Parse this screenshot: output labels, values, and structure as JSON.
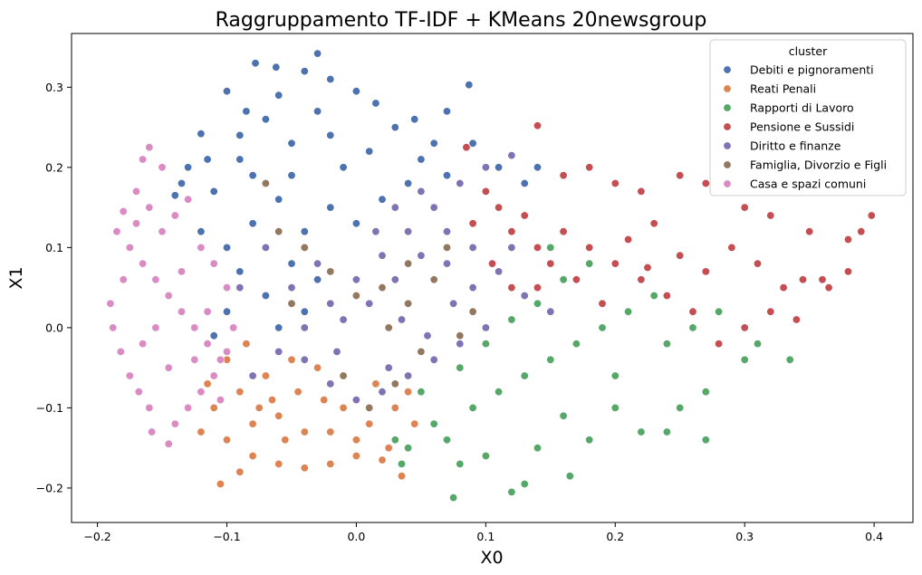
{
  "chart_data": {
    "type": "scatter",
    "title": "Raggruppamento TF-IDF + KMeans 20newsgroup",
    "xlabel": "X0",
    "ylabel": "X1",
    "xlim": [
      -0.22,
      0.43
    ],
    "ylim": [
      -0.243,
      0.367
    ],
    "x_ticks": [
      -0.2,
      -0.1,
      0.0,
      0.1,
      0.2,
      0.3,
      0.4
    ],
    "x_tick_labels": [
      "−0.2",
      "−0.1",
      "0.0",
      "0.1",
      "0.2",
      "0.3",
      "0.4"
    ],
    "y_ticks": [
      -0.2,
      -0.1,
      0.0,
      0.1,
      0.2,
      0.3
    ],
    "y_tick_labels": [
      "−0.2",
      "−0.1",
      "0.0",
      "0.1",
      "0.2",
      "0.3"
    ],
    "grid": false,
    "legend": {
      "title": "cluster",
      "placement": "upper-right"
    },
    "series": [
      {
        "name": "Debiti e pignoramenti",
        "color": "#4c72b0",
        "points": [
          [
            -0.078,
            0.33
          ],
          [
            -0.062,
            0.325
          ],
          [
            -0.04,
            0.32
          ],
          [
            -0.02,
            0.31
          ],
          [
            -0.03,
            0.342
          ],
          [
            0.0,
            0.295
          ],
          [
            0.07,
            0.27
          ],
          [
            0.087,
            0.303
          ],
          [
            -0.1,
            0.295
          ],
          [
            -0.12,
            0.242
          ],
          [
            -0.13,
            0.2
          ],
          [
            -0.14,
            0.165
          ],
          [
            -0.11,
            0.17
          ],
          [
            -0.09,
            0.24
          ],
          [
            -0.07,
            0.26
          ],
          [
            -0.05,
            0.23
          ],
          [
            -0.03,
            0.27
          ],
          [
            -0.01,
            0.2
          ],
          [
            0.01,
            0.22
          ],
          [
            0.03,
            0.25
          ],
          [
            0.05,
            0.21
          ],
          [
            0.07,
            0.19
          ],
          [
            0.09,
            0.23
          ],
          [
            0.11,
            0.2
          ],
          [
            0.13,
            0.18
          ],
          [
            0.14,
            0.2
          ],
          [
            -0.1,
            0.1
          ],
          [
            -0.08,
            0.13
          ],
          [
            -0.06,
            0.16
          ],
          [
            -0.04,
            0.12
          ],
          [
            -0.02,
            0.15
          ],
          [
            0.0,
            0.13
          ],
          [
            0.02,
            0.16
          ],
          [
            -0.12,
            0.12
          ],
          [
            -0.09,
            0.07
          ],
          [
            -0.07,
            0.04
          ],
          [
            -0.05,
            0.08
          ],
          [
            -0.03,
            0.06
          ],
          [
            -0.1,
            0.02
          ],
          [
            -0.06,
            0.0
          ],
          [
            -0.04,
            0.02
          ],
          [
            -0.11,
            -0.01
          ],
          [
            -0.08,
            0.19
          ],
          [
            -0.05,
            0.19
          ],
          [
            -0.02,
            0.24
          ],
          [
            0.04,
            0.18
          ],
          [
            0.06,
            0.23
          ],
          [
            -0.09,
            0.21
          ],
          [
            -0.115,
            0.21
          ],
          [
            -0.135,
            0.18
          ],
          [
            0.015,
            0.28
          ],
          [
            0.045,
            0.26
          ],
          [
            -0.06,
            0.29
          ],
          [
            -0.085,
            0.27
          ]
        ]
      },
      {
        "name": "Reati Penali",
        "color": "#dd8452",
        "points": [
          [
            -0.105,
            -0.195
          ],
          [
            -0.09,
            -0.18
          ],
          [
            -0.08,
            -0.16
          ],
          [
            -0.06,
            -0.17
          ],
          [
            -0.04,
            -0.175
          ],
          [
            -0.02,
            -0.17
          ],
          [
            0.0,
            -0.16
          ],
          [
            0.02,
            -0.165
          ],
          [
            0.035,
            -0.185
          ],
          [
            -0.1,
            -0.14
          ],
          [
            -0.12,
            -0.13
          ],
          [
            -0.11,
            -0.1
          ],
          [
            -0.09,
            -0.08
          ],
          [
            -0.07,
            -0.06
          ],
          [
            -0.05,
            -0.04
          ],
          [
            -0.03,
            -0.05
          ],
          [
            -0.01,
            -0.1
          ],
          [
            0.01,
            -0.12
          ],
          [
            0.03,
            -0.1
          ],
          [
            0.04,
            -0.08
          ],
          [
            -0.08,
            -0.12
          ],
          [
            -0.06,
            -0.11
          ],
          [
            -0.04,
            -0.13
          ],
          [
            -0.02,
            -0.13
          ],
          [
            0.0,
            -0.14
          ],
          [
            -0.1,
            -0.04
          ],
          [
            -0.085,
            -0.02
          ],
          [
            -0.065,
            -0.09
          ],
          [
            -0.045,
            -0.08
          ],
          [
            -0.025,
            -0.09
          ],
          [
            0.015,
            -0.07
          ],
          [
            0.025,
            -0.15
          ],
          [
            -0.115,
            -0.07
          ],
          [
            -0.075,
            -0.1
          ],
          [
            -0.055,
            -0.14
          ],
          [
            0.045,
            -0.12
          ]
        ]
      },
      {
        "name": "Rapporti di Lavoro",
        "color": "#55a868",
        "points": [
          [
            0.075,
            -0.212
          ],
          [
            0.12,
            -0.205
          ],
          [
            0.13,
            -0.195
          ],
          [
            0.165,
            -0.185
          ],
          [
            0.08,
            -0.17
          ],
          [
            0.1,
            -0.16
          ],
          [
            0.14,
            -0.15
          ],
          [
            0.18,
            -0.14
          ],
          [
            0.22,
            -0.13
          ],
          [
            0.25,
            -0.1
          ],
          [
            0.27,
            -0.08
          ],
          [
            0.3,
            -0.04
          ],
          [
            0.31,
            -0.02
          ],
          [
            0.335,
            -0.04
          ],
          [
            0.06,
            -0.12
          ],
          [
            0.09,
            -0.1
          ],
          [
            0.11,
            -0.08
          ],
          [
            0.13,
            -0.06
          ],
          [
            0.15,
            -0.04
          ],
          [
            0.17,
            -0.02
          ],
          [
            0.19,
            0.0
          ],
          [
            0.21,
            0.02
          ],
          [
            0.23,
            0.04
          ],
          [
            0.1,
            -0.02
          ],
          [
            0.12,
            0.01
          ],
          [
            0.14,
            0.03
          ],
          [
            0.16,
            0.06
          ],
          [
            0.18,
            0.08
          ],
          [
            0.2,
            -0.06
          ],
          [
            0.24,
            -0.02
          ],
          [
            0.26,
            0.0
          ],
          [
            0.04,
            -0.15
          ],
          [
            0.05,
            -0.08
          ],
          [
            0.08,
            -0.05
          ],
          [
            0.16,
            -0.11
          ],
          [
            0.2,
            -0.1
          ],
          [
            0.28,
            0.02
          ],
          [
            0.27,
            -0.14
          ],
          [
            0.24,
            -0.13
          ],
          [
            0.035,
            -0.17
          ],
          [
            0.03,
            -0.14
          ],
          [
            0.07,
            -0.14
          ],
          [
            0.15,
            0.1
          ]
        ]
      },
      {
        "name": "Pensione e Sussidi",
        "color": "#c44e52",
        "points": [
          [
            0.14,
            0.252
          ],
          [
            0.085,
            0.225
          ],
          [
            0.16,
            0.19
          ],
          [
            0.18,
            0.2
          ],
          [
            0.2,
            0.18
          ],
          [
            0.22,
            0.17
          ],
          [
            0.25,
            0.19
          ],
          [
            0.27,
            0.18
          ],
          [
            0.3,
            0.15
          ],
          [
            0.32,
            0.14
          ],
          [
            0.35,
            0.12
          ],
          [
            0.38,
            0.11
          ],
          [
            0.398,
            0.14
          ],
          [
            0.39,
            0.12
          ],
          [
            0.38,
            0.07
          ],
          [
            0.36,
            0.06
          ],
          [
            0.345,
            0.06
          ],
          [
            0.365,
            0.05
          ],
          [
            0.34,
            0.01
          ],
          [
            0.32,
            0.02
          ],
          [
            0.3,
            0.0
          ],
          [
            0.28,
            -0.02
          ],
          [
            0.26,
            0.02
          ],
          [
            0.24,
            0.04
          ],
          [
            0.22,
            0.06
          ],
          [
            0.2,
            0.08
          ],
          [
            0.18,
            0.1
          ],
          [
            0.16,
            0.12
          ],
          [
            0.14,
            0.1
          ],
          [
            0.12,
            0.12
          ],
          [
            0.11,
            0.15
          ],
          [
            0.13,
            0.14
          ],
          [
            0.15,
            0.08
          ],
          [
            0.17,
            0.06
          ],
          [
            0.19,
            0.03
          ],
          [
            0.21,
            0.11
          ],
          [
            0.23,
            0.13
          ],
          [
            0.25,
            0.09
          ],
          [
            0.27,
            0.07
          ],
          [
            0.29,
            0.1
          ],
          [
            0.31,
            0.08
          ],
          [
            0.33,
            0.05
          ],
          [
            0.1,
            0.17
          ],
          [
            0.12,
            0.05
          ],
          [
            0.14,
            0.05
          ],
          [
            0.105,
            0.08
          ],
          [
            0.09,
            0.13
          ],
          [
            0.225,
            0.075
          ]
        ]
      },
      {
        "name": "Diritto e finanze",
        "color": "#8172b3",
        "points": [
          [
            0.12,
            0.215
          ],
          [
            0.1,
            0.2
          ],
          [
            0.08,
            0.18
          ],
          [
            0.06,
            0.15
          ],
          [
            0.04,
            0.12
          ],
          [
            0.02,
            0.09
          ],
          [
            0.0,
            0.06
          ],
          [
            -0.02,
            0.03
          ],
          [
            -0.04,
            0.0
          ],
          [
            -0.06,
            -0.03
          ],
          [
            -0.08,
            -0.06
          ],
          [
            -0.05,
            0.05
          ],
          [
            -0.03,
            0.08
          ],
          [
            -0.01,
            0.01
          ],
          [
            0.01,
            0.03
          ],
          [
            0.03,
            0.06
          ],
          [
            0.05,
            0.09
          ],
          [
            0.07,
            0.12
          ],
          [
            0.09,
            0.1
          ],
          [
            0.11,
            0.07
          ],
          [
            0.13,
            0.04
          ],
          [
            0.15,
            0.02
          ],
          [
            0.1,
            0.0
          ],
          [
            0.08,
            -0.02
          ],
          [
            0.06,
            -0.04
          ],
          [
            0.04,
            -0.06
          ],
          [
            0.02,
            -0.08
          ],
          [
            0.0,
            -0.09
          ],
          [
            -0.02,
            -0.07
          ],
          [
            -0.04,
            -0.04
          ],
          [
            0.03,
            0.15
          ],
          [
            0.05,
            0.17
          ],
          [
            0.07,
            0.08
          ],
          [
            0.09,
            0.05
          ],
          [
            0.12,
            0.1
          ],
          [
            -0.07,
            0.1
          ],
          [
            -0.09,
            0.05
          ],
          [
            -0.1,
            -0.03
          ],
          [
            0.015,
            0.12
          ],
          [
            0.035,
            0.01
          ],
          [
            0.055,
            -0.01
          ],
          [
            0.075,
            0.03
          ],
          [
            -0.015,
            -0.03
          ],
          [
            0.025,
            -0.05
          ]
        ]
      },
      {
        "name": "Famiglia, Divorzio e Figli",
        "color": "#937860",
        "points": [
          [
            -0.07,
            0.18
          ],
          [
            -0.06,
            0.12
          ],
          [
            -0.04,
            0.1
          ],
          [
            -0.02,
            0.07
          ],
          [
            0.0,
            0.04
          ],
          [
            0.02,
            0.05
          ],
          [
            0.04,
            0.03
          ],
          [
            0.06,
            0.06
          ],
          [
            0.08,
            -0.01
          ],
          [
            0.05,
            -0.03
          ],
          [
            0.03,
            -0.07
          ],
          [
            0.01,
            -0.1
          ],
          [
            -0.01,
            -0.06
          ],
          [
            0.07,
            0.1
          ],
          [
            -0.05,
            0.03
          ],
          [
            0.09,
            0.02
          ],
          [
            0.04,
            0.08
          ],
          [
            0.025,
            0.0
          ]
        ]
      },
      {
        "name": "Casa e spazi comuni",
        "color": "#da8bc3",
        "points": [
          [
            -0.16,
            0.225
          ],
          [
            -0.165,
            0.21
          ],
          [
            -0.15,
            0.2
          ],
          [
            -0.17,
            0.17
          ],
          [
            -0.18,
            0.145
          ],
          [
            -0.185,
            0.12
          ],
          [
            -0.175,
            0.1
          ],
          [
            -0.165,
            0.08
          ],
          [
            -0.155,
            0.06
          ],
          [
            -0.145,
            0.04
          ],
          [
            -0.135,
            0.02
          ],
          [
            -0.125,
            0.0
          ],
          [
            -0.115,
            -0.02
          ],
          [
            -0.105,
            -0.04
          ],
          [
            -0.19,
            0.03
          ],
          [
            -0.188,
            0.0
          ],
          [
            -0.182,
            -0.03
          ],
          [
            -0.175,
            -0.06
          ],
          [
            -0.168,
            -0.08
          ],
          [
            -0.16,
            -0.1
          ],
          [
            -0.158,
            -0.13
          ],
          [
            -0.145,
            -0.145
          ],
          [
            -0.14,
            -0.12
          ],
          [
            -0.13,
            -0.1
          ],
          [
            -0.12,
            -0.08
          ],
          [
            -0.11,
            -0.06
          ],
          [
            -0.1,
            -0.03
          ],
          [
            -0.15,
            0.12
          ],
          [
            -0.14,
            0.14
          ],
          [
            -0.13,
            0.16
          ],
          [
            -0.12,
            0.1
          ],
          [
            -0.11,
            0.08
          ],
          [
            -0.1,
            0.05
          ],
          [
            -0.135,
            0.07
          ],
          [
            -0.155,
            0.0
          ],
          [
            -0.165,
            -0.02
          ],
          [
            -0.145,
            -0.05
          ],
          [
            -0.125,
            -0.04
          ],
          [
            -0.115,
            0.02
          ],
          [
            -0.18,
            0.06
          ],
          [
            -0.17,
            0.13
          ],
          [
            -0.16,
            0.15
          ],
          [
            -0.095,
            0.0
          ],
          [
            -0.105,
            -0.09
          ]
        ]
      }
    ]
  }
}
